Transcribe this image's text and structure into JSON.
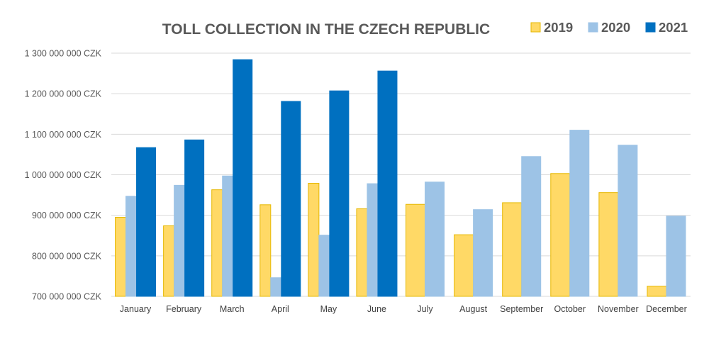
{
  "chart_data": {
    "type": "bar",
    "title": "TOLL COLLECTION IN THE CZECH REPUBLIC",
    "xlabel": "",
    "ylabel": "",
    "categories": [
      "January",
      "February",
      "March",
      "April",
      "May",
      "June",
      "July",
      "August",
      "September",
      "October",
      "November",
      "December"
    ],
    "series": [
      {
        "name": "2019",
        "color": "#FFD966",
        "border": "#E6B800",
        "values": [
          895000000,
          874000000,
          963000000,
          926000000,
          979000000,
          916000000,
          927000000,
          852000000,
          931000000,
          1003000000,
          956000000,
          725000000
        ]
      },
      {
        "name": "2020",
        "color": "#9DC3E6",
        "border": "#9DC3E6",
        "values": [
          947000000,
          974000000,
          997000000,
          746000000,
          851000000,
          978000000,
          982000000,
          914000000,
          1045000000,
          1110000000,
          1073000000,
          898000000
        ]
      },
      {
        "name": "2021",
        "color": "#0070C0",
        "border": "#0070C0",
        "values": [
          1067000000,
          1086000000,
          1284000000,
          1181000000,
          1207000000,
          1256000000,
          null,
          null,
          null,
          null,
          null,
          null
        ]
      }
    ],
    "ylim": [
      700000000,
      1300000000
    ],
    "yticks": [
      700000000,
      800000000,
      900000000,
      1000000000,
      1100000000,
      1200000000,
      1300000000
    ],
    "ytick_labels": [
      "700 000 000 CZK",
      "800 000 000 CZK",
      "900 000 000 CZK",
      "1 000 000 000 CZK",
      "1 100 000 000 CZK",
      "1 200 000 000 CZK",
      "1 300 000 000 CZK"
    ],
    "grid": true,
    "legend_position": "top-right",
    "gridline_color": "#D9D9D9",
    "text_color": "#595959"
  }
}
